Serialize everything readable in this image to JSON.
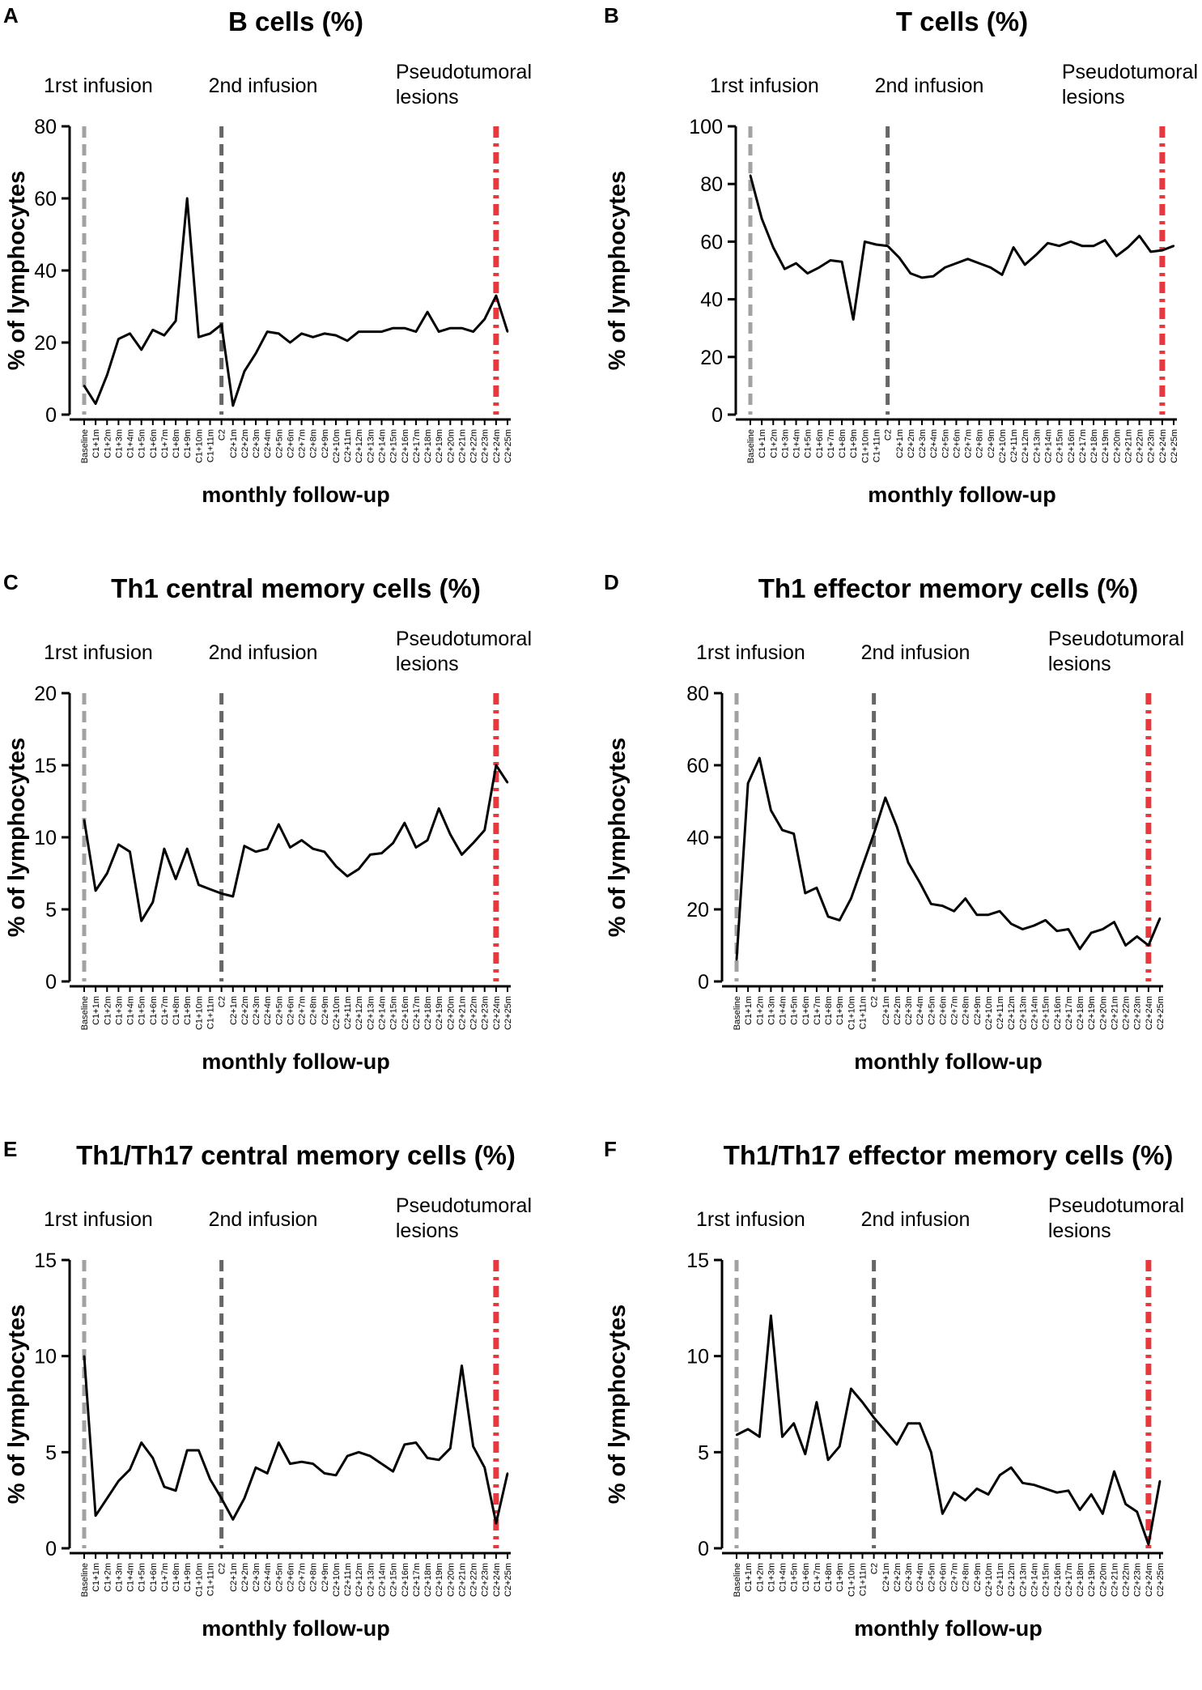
{
  "annotations": {
    "first": "1rst infusion",
    "second": "2nd infusion",
    "third": [
      "Pseudotumoral",
      "lesions"
    ]
  },
  "axis_labels": {
    "y": "% of lymphocytes",
    "x": "monthly follow-up"
  },
  "colors": {
    "line": "#000000",
    "infusion_line": "#666666",
    "lesion_line": "#e8383d"
  },
  "x_categories": [
    "Baseline",
    "C1+1m",
    "C1+2m",
    "C1+3m",
    "C1+4m",
    "C1+5m",
    "C1+6m",
    "C1+7m",
    "C1+8m",
    "C1+9m",
    "C1+10m",
    "C1+11m",
    "C2",
    "C2+1m",
    "C2+2m",
    "C2+3m",
    "C2+4m",
    "C2+5m",
    "C2+6m",
    "C2+7m",
    "C2+8m",
    "C2+9m",
    "C2+10m",
    "C2+11m",
    "C2+12m",
    "C2+13m",
    "C2+14m",
    "C2+15m",
    "C2+16m",
    "C2+17m",
    "C2+18m",
    "C2+19m",
    "C2+20m",
    "C2+21m",
    "C2+22m",
    "C2+23m",
    "C2+24m",
    "C2+25m"
  ],
  "chart_data": [
    {
      "label": "A",
      "type": "line",
      "title": "B cells (%)",
      "xlabel": "monthly follow-up",
      "ylabel": "% of lymphocytes",
      "ylim": [
        0,
        80
      ],
      "yticks": [
        0,
        20,
        40,
        60,
        80
      ],
      "values": [
        8,
        3,
        11,
        21,
        22.5,
        18,
        23.5,
        22,
        26,
        60,
        21.5,
        22.5,
        25,
        2.5,
        12,
        17,
        23,
        22.5,
        20,
        22.5,
        21.5,
        22.5,
        22,
        20.5,
        23,
        23,
        23,
        24,
        24,
        23,
        28.5,
        23,
        24,
        24,
        23,
        26.5,
        33,
        23
      ]
    },
    {
      "label": "B",
      "type": "line",
      "title": "T cells (%)",
      "xlabel": "monthly follow-up",
      "ylabel": "% of lymphocytes",
      "ylim": [
        0,
        100
      ],
      "yticks": [
        0,
        20,
        40,
        60,
        80,
        100
      ],
      "values": [
        83,
        68,
        58,
        50.5,
        52.5,
        49,
        51,
        53.5,
        53,
        33,
        60,
        59,
        58.5,
        54.5,
        49,
        47.5,
        48,
        51,
        52.5,
        54,
        52.5,
        51,
        48.5,
        58,
        52,
        55.5,
        59.5,
        58.5,
        60,
        58.5,
        58.5,
        60.5,
        55,
        58,
        62,
        56.5,
        57,
        58.5
      ]
    },
    {
      "label": "C",
      "type": "line",
      "title": "Th1 central memory cells (%)",
      "xlabel": "monthly follow-up",
      "ylabel": "% of lymphocytes",
      "ylim": [
        0,
        20
      ],
      "yticks": [
        0,
        5,
        10,
        15,
        20
      ],
      "values": [
        11.2,
        6.3,
        7.5,
        9.5,
        9,
        4.2,
        5.5,
        9.2,
        7.1,
        9.2,
        6.7,
        6.4,
        6.1,
        5.9,
        9.4,
        9,
        9.2,
        10.9,
        9.3,
        9.8,
        9.2,
        9,
        8,
        7.3,
        7.8,
        8.8,
        8.9,
        9.6,
        11,
        9.3,
        9.8,
        12,
        10.2,
        8.8,
        9.6,
        10.5,
        15,
        13.8
      ]
    },
    {
      "label": "D",
      "type": "line",
      "title": "Th1 effector memory cells (%)",
      "xlabel": "monthly follow-up",
      "ylabel": "% of lymphocytes",
      "ylim": [
        0,
        80
      ],
      "yticks": [
        0,
        20,
        40,
        60,
        80
      ],
      "values": [
        6,
        55,
        62,
        47.5,
        42,
        41,
        24.5,
        26,
        18,
        17,
        23,
        32,
        41,
        51,
        43,
        33,
        27.5,
        21.5,
        21,
        19.5,
        23,
        18.5,
        18.5,
        19.5,
        16,
        14.5,
        15.5,
        17,
        14,
        14.5,
        9,
        13.5,
        14.5,
        16.5,
        10,
        12.5,
        10,
        17.5
      ]
    },
    {
      "label": "E",
      "type": "line",
      "title": "Th1/Th17 central memory cells (%)",
      "xlabel": "monthly follow-up",
      "ylabel": "% of lymphocytes",
      "ylim": [
        0,
        15
      ],
      "yticks": [
        0,
        5,
        10,
        15
      ],
      "values": [
        10,
        1.7,
        2.6,
        3.5,
        4.1,
        5.5,
        4.7,
        3.2,
        3,
        5.1,
        5.1,
        3.6,
        2.6,
        1.5,
        2.6,
        4.2,
        3.9,
        5.5,
        4.4,
        4.5,
        4.4,
        3.9,
        3.8,
        4.8,
        5,
        4.8,
        4.4,
        4,
        5.4,
        5.5,
        4.7,
        4.6,
        5.2,
        9.5,
        5.3,
        4.2,
        1.3,
        3.9
      ]
    },
    {
      "label": "F",
      "type": "line",
      "title": "Th1/Th17 effector memory cells (%)",
      "xlabel": "monthly follow-up",
      "ylabel": "% of lymphocytes",
      "ylim": [
        0,
        15
      ],
      "yticks": [
        0,
        5,
        10,
        15
      ],
      "values": [
        5.9,
        6.2,
        5.8,
        12.1,
        5.8,
        6.5,
        4.9,
        7.6,
        4.6,
        5.3,
        8.3,
        7.6,
        6.8,
        6.1,
        5.4,
        6.5,
        6.5,
        5,
        1.8,
        2.9,
        2.5,
        3.1,
        2.8,
        3.8,
        4.2,
        3.4,
        3.3,
        3.1,
        2.9,
        3,
        2,
        2.8,
        1.8,
        4,
        2.3,
        1.9,
        0.2,
        3.5
      ]
    }
  ]
}
